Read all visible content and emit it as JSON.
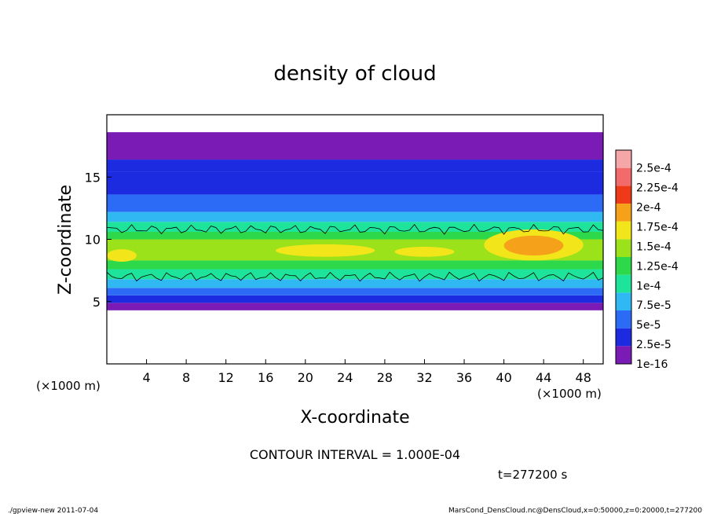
{
  "chart_data": {
    "type": "heatmap",
    "title": "density of cloud",
    "xlabel": "X-coordinate",
    "ylabel": "Z-coordinate",
    "x_unit_left": "(×1000 m)",
    "x_unit_right": "(×1000 m)",
    "xlim": [
      0,
      50
    ],
    "ylim": [
      0,
      20
    ],
    "x_ticks": [
      4,
      8,
      12,
      16,
      20,
      24,
      28,
      32,
      36,
      40,
      44,
      48
    ],
    "y_ticks": [
      5,
      10,
      15
    ],
    "colorbar": {
      "levels": [
        "1e-16",
        "2.5e-5",
        "5e-5",
        "7.5e-5",
        "1e-4",
        "1.25e-4",
        "1.5e-4",
        "1.75e-4",
        "2e-4",
        "2.25e-4",
        "2.5e-4"
      ],
      "colors": [
        "#7a1bb5",
        "#1c2ae0",
        "#2c6bf5",
        "#2fb8f2",
        "#1ee39a",
        "#2ed84b",
        "#9be21a",
        "#f2e61a",
        "#f5a21a",
        "#ef3a1a",
        "#f26a6a",
        "#f5a6a6"
      ]
    },
    "contour_interval": "CONTOUR INTERVAL = 1.000E-04",
    "time_label": "t=277200 s",
    "footer_left": "./gpview-new  2011-07-04",
    "footer_right": "MarsCond_DensCloud.nc@DensCloud,x=0:50000,z=0:20000,t=277200",
    "bands": [
      {
        "z0": 4.3,
        "z1": 4.9,
        "level": 0
      },
      {
        "z0": 4.9,
        "z1": 5.5,
        "level": 1
      },
      {
        "z0": 5.5,
        "z1": 6.1,
        "level": 2
      },
      {
        "z0": 6.1,
        "z1": 6.8,
        "level": 3
      },
      {
        "z0": 6.8,
        "z1": 7.6,
        "level": 4
      },
      {
        "z0": 7.6,
        "z1": 8.3,
        "level": 5
      },
      {
        "z0": 8.3,
        "z1": 10.0,
        "level": 6
      },
      {
        "z0": 10.0,
        "z1": 10.6,
        "level": 5
      },
      {
        "z0": 10.6,
        "z1": 11.4,
        "level": 4
      },
      {
        "z0": 11.4,
        "z1": 12.2,
        "level": 3
      },
      {
        "z0": 12.2,
        "z1": 13.6,
        "level": 2
      },
      {
        "z0": 13.6,
        "z1": 15.4,
        "level": 1
      },
      {
        "z0": 15.4,
        "z1": 16.4,
        "level": 1
      },
      {
        "z0": 16.4,
        "z1": 18.6,
        "level": 0
      }
    ],
    "patches": [
      {
        "x0": 17,
        "x1": 27,
        "z0": 8.6,
        "z1": 9.6,
        "level": 7
      },
      {
        "x0": 29,
        "x1": 35,
        "z0": 8.6,
        "z1": 9.4,
        "level": 7
      },
      {
        "x0": 38,
        "x1": 48,
        "z0": 8.3,
        "z1": 10.8,
        "level": 7
      },
      {
        "x0": 40,
        "x1": 46,
        "z0": 8.7,
        "z1": 10.3,
        "level": 8
      },
      {
        "x0": 0,
        "x1": 3,
        "z0": 8.2,
        "z1": 9.2,
        "level": 7
      }
    ]
  }
}
